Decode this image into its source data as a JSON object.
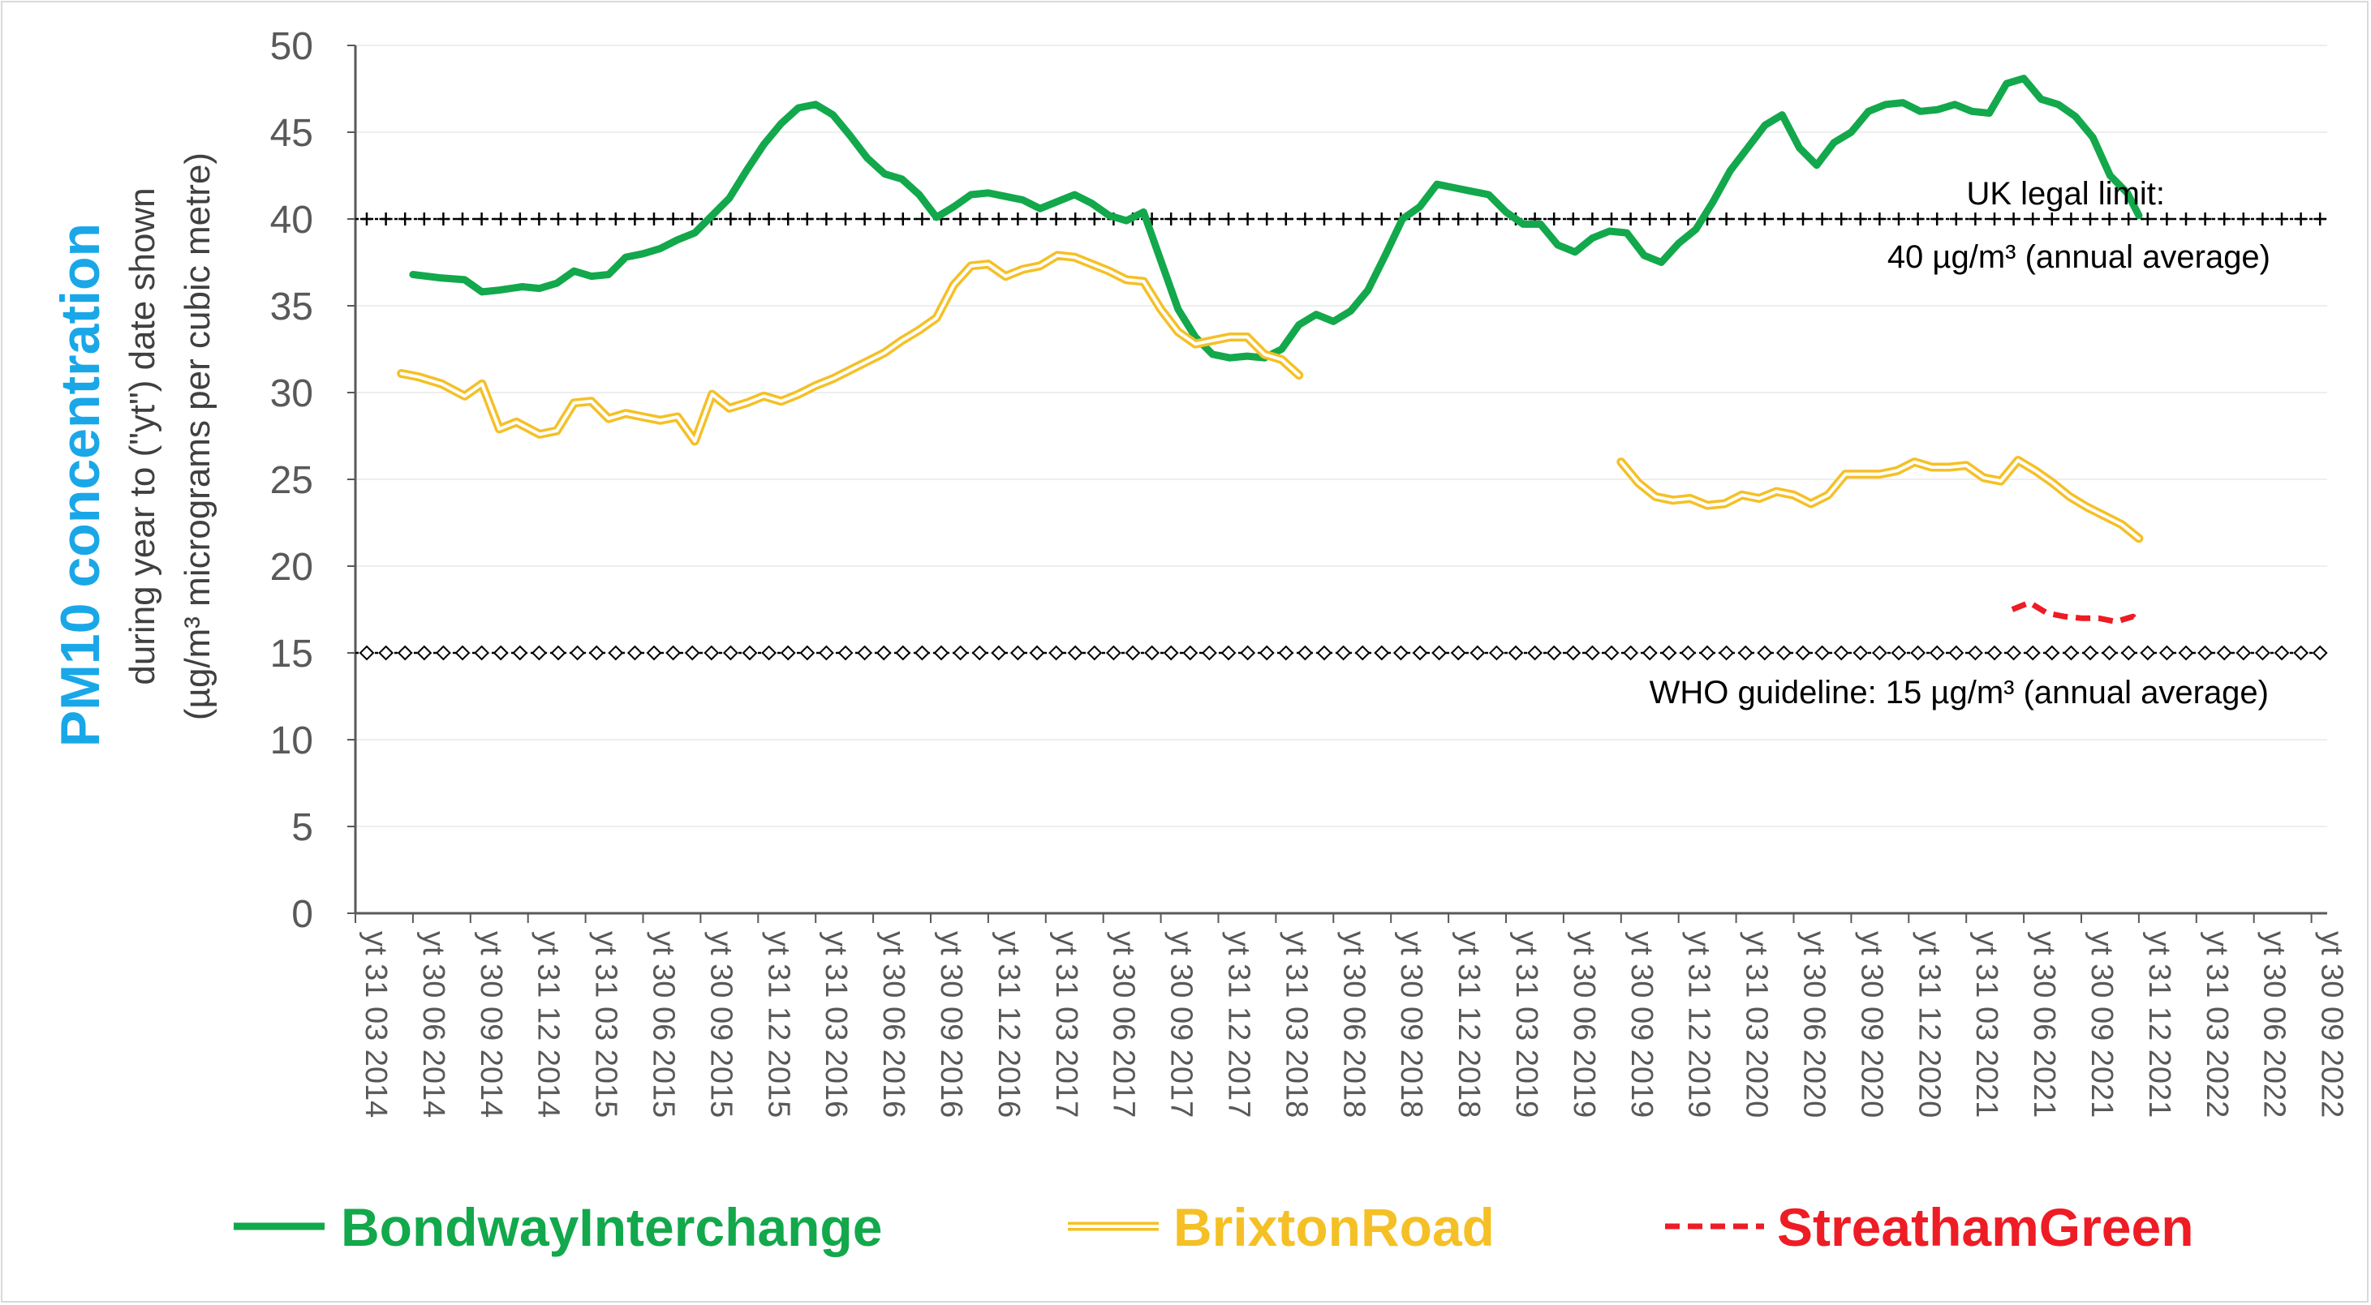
{
  "chart_data": {
    "type": "line",
    "title": "PM10 concentration",
    "ylabel_line1": "during year to (\"yt\") date shown",
    "ylabel_line2": "(µg/m³ micrograms per cubic metre)",
    "title_color": "#1aa7e8",
    "ylim": [
      0,
      50
    ],
    "yticks": [
      0,
      5,
      10,
      15,
      20,
      25,
      30,
      35,
      40,
      45,
      50
    ],
    "grid": true,
    "legend_position": "bottom",
    "x_labels": [
      "yt 31 03 2014",
      "yt 30 06 2014",
      "yt 30 09 2014",
      "yt 31 12 2014",
      "yt 31 03 2015",
      "yt 30 06 2015",
      "yt 30 09 2015",
      "yt 31 12 2015",
      "yt 31 03 2016",
      "yt 30 06 2016",
      "yt 30 09 2016",
      "yt 31 12 2016",
      "yt 31 03 2017",
      "yt 30 06 2017",
      "yt 30 09 2017",
      "yt 31 12 2017",
      "yt 31 03 2018",
      "yt 30 06 2018",
      "yt 30 09 2018",
      "yt 31 12 2018",
      "yt 31 03 2019",
      "yt 30 06 2019",
      "yt 30 09 2019",
      "yt 31 12 2019",
      "yt 31 03 2020",
      "yt 30 06 2020",
      "yt 30 09 2020",
      "yt 31 12 2020",
      "yt 31 03 2021",
      "yt 30 06 2021",
      "yt 30 09 2021",
      "yt 31 12 2021",
      "yt 31 03 2022",
      "yt 30 06 2022",
      "yt 30 09 2022"
    ],
    "reference_lines": [
      {
        "name": "UK legal limit",
        "value": 40,
        "label_line1": "UK legal limit:",
        "label_line2": "40 µg/m³ (annual average)",
        "marker": "plus"
      },
      {
        "name": "WHO guideline",
        "value": 15,
        "label_line1": "WHO guideline:  15 µg/m³ (annual average)",
        "marker": "diamond"
      }
    ],
    "series": [
      {
        "name": "BondwayInterchange",
        "color": "#12a84b",
        "style": "solid",
        "points": [
          [
            1,
            36.8
          ],
          [
            1.5,
            36.6
          ],
          [
            1.9,
            36.5
          ],
          [
            2.2,
            35.8
          ],
          [
            2.5,
            35.9
          ],
          [
            2.9,
            36.1
          ],
          [
            3.2,
            36.0
          ],
          [
            3.5,
            36.3
          ],
          [
            3.8,
            37.0
          ],
          [
            4.1,
            36.7
          ],
          [
            4.4,
            36.8
          ],
          [
            4.7,
            37.8
          ],
          [
            5.0,
            38.0
          ],
          [
            5.3,
            38.3
          ],
          [
            5.6,
            38.8
          ],
          [
            5.9,
            39.2
          ],
          [
            6.2,
            40.2
          ],
          [
            6.5,
            41.2
          ],
          [
            6.8,
            42.8
          ],
          [
            7.1,
            44.3
          ],
          [
            7.4,
            45.5
          ],
          [
            7.7,
            46.4
          ],
          [
            8.0,
            46.6
          ],
          [
            8.3,
            46.0
          ],
          [
            8.6,
            44.8
          ],
          [
            8.9,
            43.5
          ],
          [
            9.2,
            42.6
          ],
          [
            9.5,
            42.3
          ],
          [
            9.8,
            41.4
          ],
          [
            10.1,
            40.1
          ],
          [
            10.4,
            40.7
          ],
          [
            10.7,
            41.4
          ],
          [
            11.0,
            41.5
          ],
          [
            11.3,
            41.3
          ],
          [
            11.6,
            41.1
          ],
          [
            11.9,
            40.6
          ],
          [
            12.2,
            41.0
          ],
          [
            12.5,
            41.4
          ],
          [
            12.8,
            40.9
          ],
          [
            13.1,
            40.2
          ],
          [
            13.4,
            39.9
          ],
          [
            13.7,
            40.4
          ],
          [
            14.0,
            37.6
          ],
          [
            14.3,
            34.8
          ],
          [
            14.6,
            33.2
          ],
          [
            14.9,
            32.2
          ],
          [
            15.2,
            32.0
          ],
          [
            15.5,
            32.1
          ],
          [
            15.8,
            32.0
          ],
          [
            16.1,
            32.5
          ],
          [
            16.4,
            33.9
          ],
          [
            16.7,
            34.5
          ],
          [
            17.0,
            34.1
          ],
          [
            17.3,
            34.7
          ],
          [
            17.6,
            35.9
          ],
          [
            17.9,
            37.9
          ],
          [
            18.2,
            40.0
          ],
          [
            18.5,
            40.7
          ],
          [
            18.8,
            42.0
          ],
          [
            19.1,
            41.8
          ],
          [
            19.4,
            41.6
          ],
          [
            19.7,
            41.4
          ],
          [
            20.0,
            40.4
          ],
          [
            20.3,
            39.7
          ],
          [
            20.6,
            39.7
          ],
          [
            20.9,
            38.5
          ],
          [
            21.2,
            38.1
          ],
          [
            21.5,
            38.9
          ],
          [
            21.8,
            39.3
          ],
          [
            22.1,
            39.2
          ],
          [
            22.4,
            37.9
          ],
          [
            22.7,
            37.5
          ],
          [
            23.0,
            38.6
          ],
          [
            23.3,
            39.4
          ],
          [
            23.6,
            41.0
          ],
          [
            23.9,
            42.8
          ],
          [
            24.2,
            44.1
          ],
          [
            24.5,
            45.4
          ],
          [
            24.8,
            46.0
          ],
          [
            25.1,
            44.1
          ],
          [
            25.4,
            43.1
          ],
          [
            25.7,
            44.4
          ],
          [
            26.0,
            45.0
          ],
          [
            26.3,
            46.2
          ],
          [
            26.6,
            46.6
          ],
          [
            26.9,
            46.7
          ],
          [
            27.2,
            46.2
          ],
          [
            27.5,
            46.3
          ],
          [
            27.8,
            46.6
          ],
          [
            28.1,
            46.2
          ],
          [
            28.4,
            46.1
          ],
          [
            28.7,
            47.8
          ],
          [
            29.0,
            48.1
          ],
          [
            29.3,
            46.9
          ],
          [
            29.6,
            46.6
          ],
          [
            29.9,
            45.9
          ],
          [
            30.2,
            44.7
          ],
          [
            30.5,
            42.5
          ],
          [
            30.8,
            41.5
          ],
          [
            31.0,
            40.2
          ]
        ]
      },
      {
        "name": "BrixtonRoad",
        "color": "#f5c026",
        "style": "double",
        "segments": [
          [
            [
              0.8,
              31.1
            ],
            [
              1.1,
              30.9
            ],
            [
              1.5,
              30.5
            ],
            [
              1.9,
              29.8
            ],
            [
              2.2,
              30.5
            ],
            [
              2.5,
              27.9
            ],
            [
              2.8,
              28.3
            ],
            [
              3.2,
              27.6
            ],
            [
              3.5,
              27.8
            ],
            [
              3.8,
              29.4
            ],
            [
              4.1,
              29.5
            ],
            [
              4.4,
              28.5
            ],
            [
              4.7,
              28.8
            ],
            [
              5.0,
              28.6
            ],
            [
              5.3,
              28.4
            ],
            [
              5.6,
              28.6
            ],
            [
              5.9,
              27.2
            ],
            [
              6.2,
              29.9
            ],
            [
              6.5,
              29.1
            ],
            [
              6.8,
              29.4
            ],
            [
              7.1,
              29.8
            ],
            [
              7.4,
              29.5
            ],
            [
              7.7,
              29.9
            ],
            [
              8.0,
              30.4
            ],
            [
              8.3,
              30.8
            ],
            [
              8.6,
              31.3
            ],
            [
              8.9,
              31.8
            ],
            [
              9.2,
              32.3
            ],
            [
              9.5,
              33.0
            ],
            [
              9.8,
              33.6
            ],
            [
              10.1,
              34.3
            ],
            [
              10.4,
              36.2
            ],
            [
              10.7,
              37.3
            ],
            [
              11.0,
              37.4
            ],
            [
              11.3,
              36.7
            ],
            [
              11.6,
              37.1
            ],
            [
              11.9,
              37.3
            ],
            [
              12.2,
              37.9
            ],
            [
              12.5,
              37.8
            ],
            [
              12.8,
              37.4
            ],
            [
              13.1,
              37.0
            ],
            [
              13.4,
              36.5
            ],
            [
              13.7,
              36.4
            ],
            [
              14.0,
              34.8
            ],
            [
              14.3,
              33.5
            ],
            [
              14.6,
              32.8
            ],
            [
              14.9,
              33.0
            ],
            [
              15.2,
              33.2
            ],
            [
              15.5,
              33.2
            ],
            [
              15.8,
              32.2
            ],
            [
              16.1,
              31.9
            ],
            [
              16.4,
              31.0
            ]
          ],
          [
            [
              22.0,
              26.0
            ],
            [
              22.3,
              24.8
            ],
            [
              22.6,
              24.0
            ],
            [
              22.9,
              23.8
            ],
            [
              23.2,
              23.9
            ],
            [
              23.5,
              23.5
            ],
            [
              23.8,
              23.6
            ],
            [
              24.1,
              24.1
            ],
            [
              24.4,
              23.9
            ],
            [
              24.7,
              24.3
            ],
            [
              25.0,
              24.1
            ],
            [
              25.3,
              23.6
            ],
            [
              25.6,
              24.1
            ],
            [
              25.9,
              25.3
            ],
            [
              26.2,
              25.3
            ],
            [
              26.5,
              25.3
            ],
            [
              26.8,
              25.5
            ],
            [
              27.1,
              26.0
            ],
            [
              27.4,
              25.7
            ],
            [
              27.7,
              25.7
            ],
            [
              28.0,
              25.8
            ],
            [
              28.3,
              25.1
            ],
            [
              28.6,
              24.9
            ],
            [
              28.9,
              26.1
            ],
            [
              29.2,
              25.5
            ],
            [
              29.5,
              24.8
            ],
            [
              29.8,
              24.0
            ],
            [
              30.1,
              23.4
            ],
            [
              30.4,
              22.9
            ],
            [
              30.7,
              22.4
            ],
            [
              31.0,
              21.6
            ]
          ]
        ]
      },
      {
        "name": "StreathamGreen",
        "color": "#ee1c24",
        "style": "dashed",
        "points": [
          [
            28.8,
            17.5
          ],
          [
            29.1,
            17.9
          ],
          [
            29.4,
            17.3
          ],
          [
            29.7,
            17.1
          ],
          [
            30.0,
            17.0
          ],
          [
            30.3,
            17.0
          ],
          [
            30.6,
            16.8
          ],
          [
            30.9,
            17.1
          ],
          [
            31.0,
            16.7
          ]
        ]
      }
    ]
  }
}
